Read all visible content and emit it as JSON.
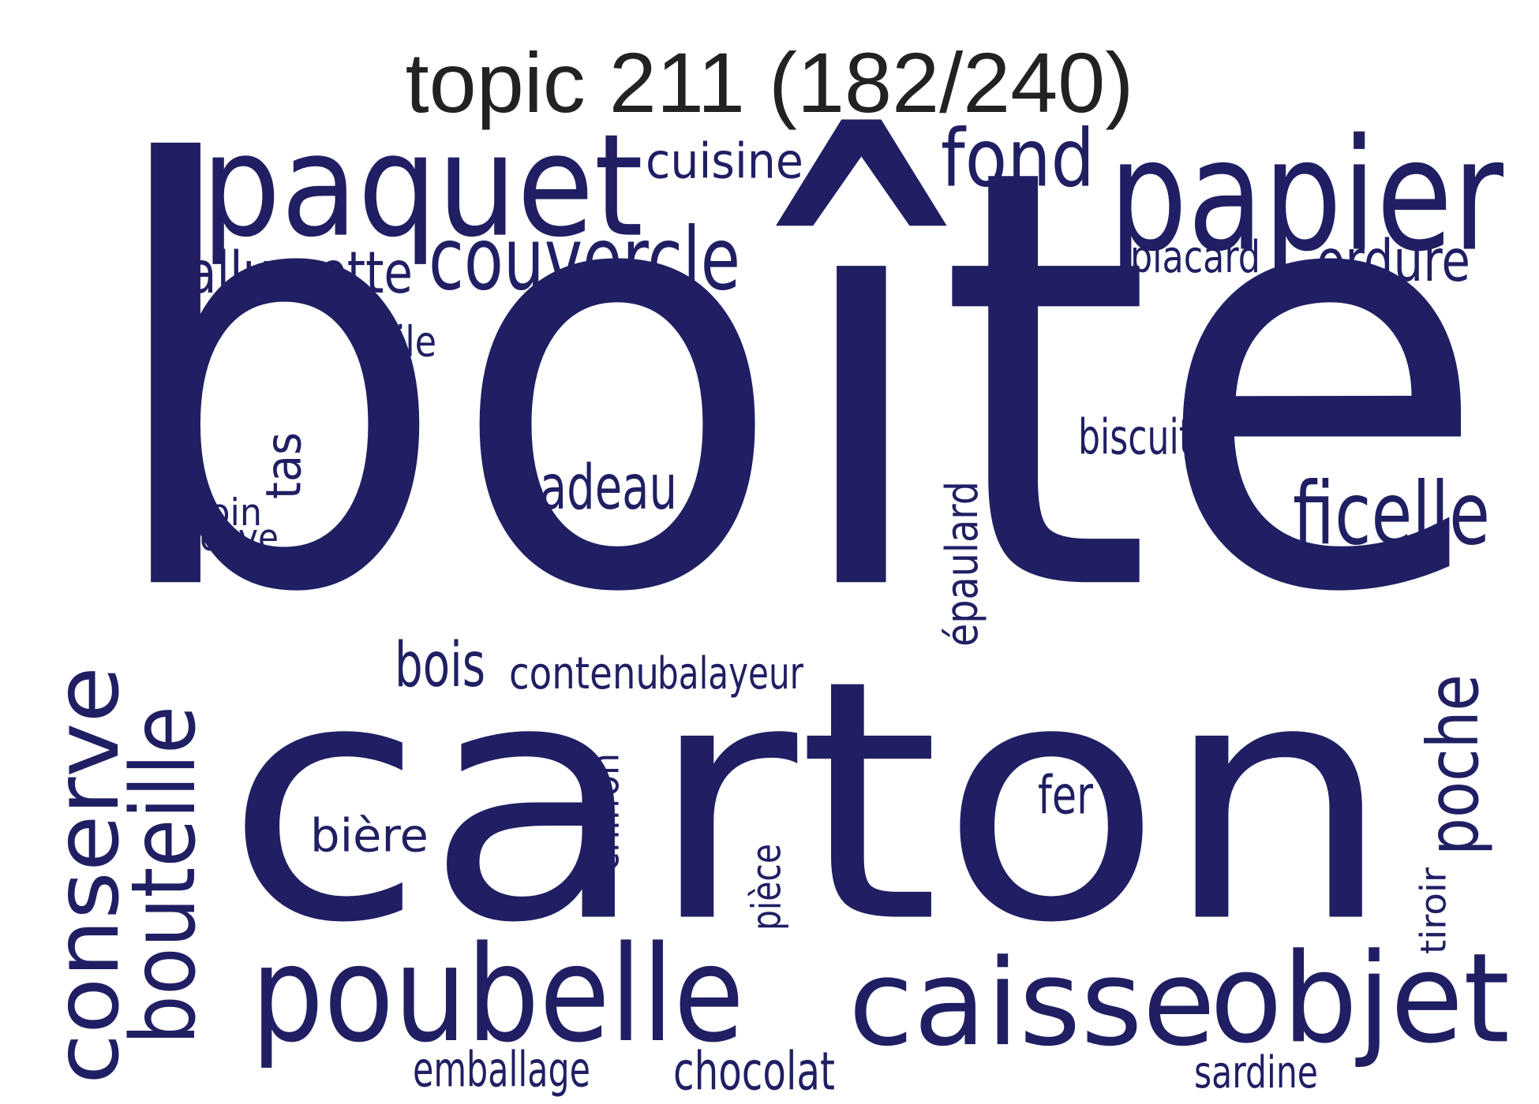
{
  "title": "topic 211 (182/240)",
  "word_color": "#201f63",
  "words": [
    {
      "text": "boîte"
    },
    {
      "text": "carton"
    },
    {
      "text": "paquet"
    },
    {
      "text": "papier"
    },
    {
      "text": "cuisine"
    },
    {
      "text": "fond"
    },
    {
      "text": "couvercle"
    },
    {
      "text": "allumette"
    },
    {
      "text": "placard"
    },
    {
      "text": "ordure"
    },
    {
      "text": "pile"
    },
    {
      "text": "biscuit"
    },
    {
      "text": "tas"
    },
    {
      "text": "cadeau"
    },
    {
      "text": "coin"
    },
    {
      "text": "cave"
    },
    {
      "text": "ficelle"
    },
    {
      "text": "épaulard"
    },
    {
      "text": "bois"
    },
    {
      "text": "contenu"
    },
    {
      "text": "balayeur"
    },
    {
      "text": "conserve"
    },
    {
      "text": "bouteille"
    },
    {
      "text": "poche"
    },
    {
      "text": "chiffon"
    },
    {
      "text": "fer"
    },
    {
      "text": "bière"
    },
    {
      "text": "pièce"
    },
    {
      "text": "tiroir"
    },
    {
      "text": "poubelle"
    },
    {
      "text": "caisse"
    },
    {
      "text": "objet"
    },
    {
      "text": "emballage"
    },
    {
      "text": "chocolat"
    },
    {
      "text": "sardine"
    }
  ]
}
